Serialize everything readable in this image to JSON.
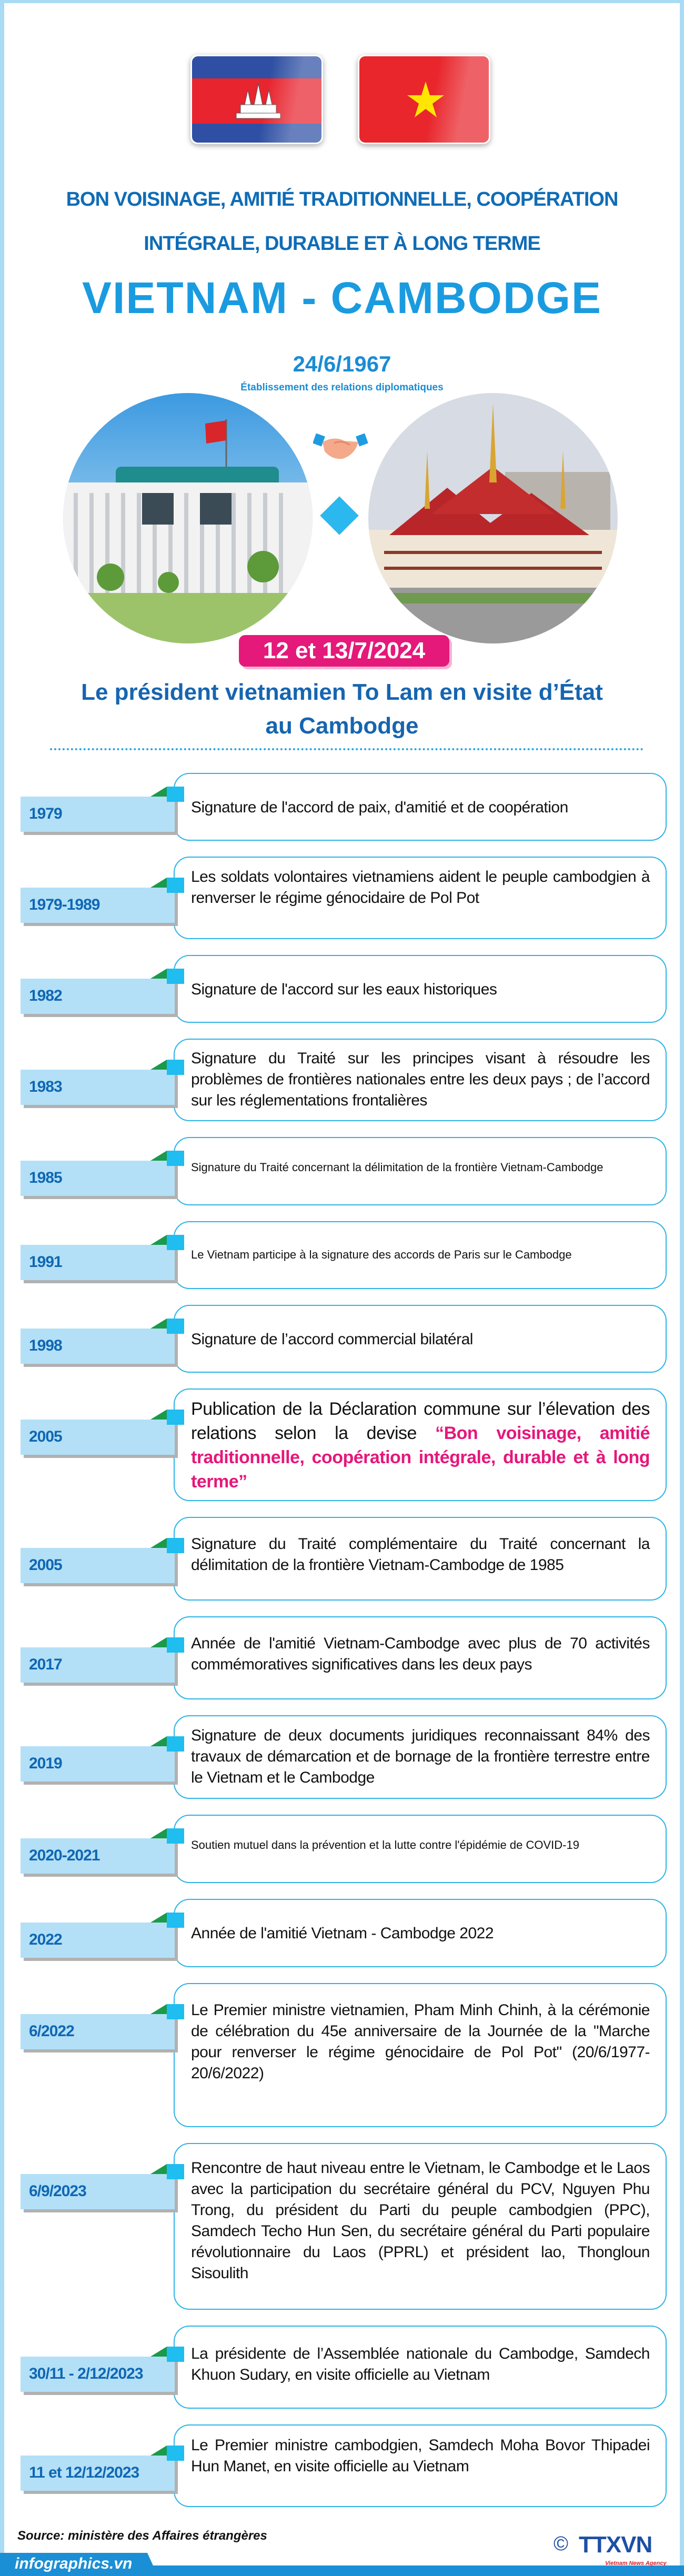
{
  "header": {
    "title_line1": "BON VOISINAGE, AMITIÉ TRADITIONNELLE, COOPÉRATION",
    "title_line2": "INTÉGRALE, DURABLE ET À LONG TERME",
    "countries": "VIETNAM - CAMBODGE",
    "establishment_date": "24/6/1967",
    "establishment_label": "Établissement des relations diplomatiques",
    "visit_date": "12 et 13/7/2024",
    "visit_line1": "Le président vietnamien To Lam en visite d’État",
    "visit_line2": "au Cambodge"
  },
  "colors": {
    "title_blue": "#0f6cb6",
    "accent_blue": "#1a9be0",
    "pink": "#e5197a",
    "label_bg": "#b3e0f7",
    "box_border": "#2cb3e6"
  },
  "timeline": [
    {
      "year": "1979",
      "text": "Signature de l'accord de paix, d'amitié et de coopération"
    },
    {
      "year": "1979-1989",
      "text": "Les soldats volontaires vietnamiens aident le peuple cambodgien à renverser le régime génocidaire  de Pol Pot"
    },
    {
      "year": "1982",
      "text": "Signature de l'accord sur les eaux historiques"
    },
    {
      "year": "1983",
      "text": "Signature du Traité sur les principes visant à résoudre les problèmes de frontières nationales entre les deux pays ; de l’accord sur les réglementations frontalières"
    },
    {
      "year": "1985",
      "text": "Signature du Traité concernant la délimitation de la frontière Vietnam-Cambodge"
    },
    {
      "year": "1991",
      "text": "Le Vietnam participe à la signature des accords de Paris sur le Cambodge"
    },
    {
      "year": "1998",
      "text": "Signature de l’accord commercial bilatéral"
    },
    {
      "year": "2005",
      "text": "Publication de la Déclaration commune sur l’élevation des relations selon la devise ",
      "highlight": "“Bon voisinage, amitié traditionnelle, coopération intégrale, durable et à long terme”"
    },
    {
      "year": "2005",
      "text": "Signature du Traité complémentaire du Traité concernant la délimitation de la frontière Vietnam-Cambodge de 1985"
    },
    {
      "year": "2017",
      "text": "Année de l'amitié Vietnam-Cambodge avec plus de 70 activités commémoratives significatives dans les deux pays"
    },
    {
      "year": "2019",
      "text": "Signature de deux documents juridiques reconnaissant 84% des travaux de démarcation et de bornage de la frontière terrestre entre le Vietnam et le Cambodge"
    },
    {
      "year": "2020-2021",
      "text": "Soutien mutuel dans la prévention et la lutte contre l'épidémie de COVID-19"
    },
    {
      "year": "2022",
      "text": "Année de l'amitié Vietnam - Cambodge 2022"
    },
    {
      "year": "6/2022",
      "text": "Le Premier ministre vietnamien, Pham Minh Chinh, à la cérémonie de célébration du 45e anniversaire de la Journée de la \"Marche pour renverser le régime génocidaire de Pol Pot\" (20/6/1977-20/6/2022)"
    },
    {
      "year": "6/9/2023",
      "text": "Rencontre de haut niveau entre le Vietnam, le Cambodge et le Laos avec la participation du secrétaire général du PCV, Nguyen Phu Trong, du président du Parti du peuple cambodgien (PPC), Samdech Techo Hun Sen, du secrétaire général du Parti populaire révolutionnaire du Laos (PPRL) et président lao, Thongloun Sisoulith"
    },
    {
      "year": "30/11 - 2/12/2023",
      "text": "La présidente de l’Assemblée nationale du Cambodge, Samdech Khuon Sudary, en visite officielle au Vietnam"
    },
    {
      "year": "11 et 12/12/2023",
      "text": "Le Premier ministre cambodgien, Samdech Moha Bovor Thipadei Hun Manet, en visite officielle au Vietnam"
    }
  ],
  "footer": {
    "source": "Source: ministère des Affaires étrangères",
    "site": "infographics.vn",
    "copyright": "©",
    "logo": "TTXVN",
    "agency": "Vietnam News Agency"
  }
}
